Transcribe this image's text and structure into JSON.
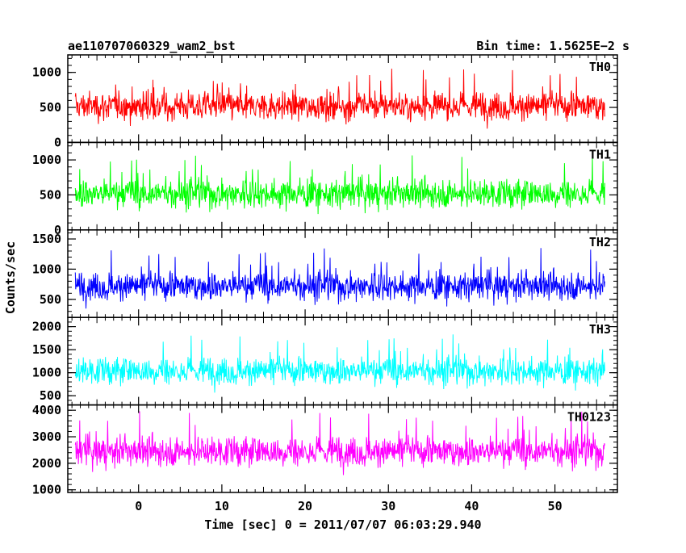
{
  "chart_data": {
    "type": "line",
    "title_left": "ae110707060329_wam2_bst",
    "title_right": "Bin time: 1.5625E−2 s",
    "xlabel": "Time [sec] 0 = 2011/07/07 06:03:29.940",
    "ylabel": "Counts/sec",
    "xlim": [
      -8.5,
      57.5
    ],
    "x_ticks": [
      0,
      10,
      20,
      30,
      40,
      50
    ],
    "data_x_range": [
      -7.6,
      56.0
    ],
    "panels": [
      {
        "name": "TH0",
        "color": "#ff0000",
        "ylim": [
          0,
          1250
        ],
        "y_ticks": [
          0,
          500,
          1000
        ],
        "mean": 520,
        "spread": 260,
        "min": 60,
        "max": 1250
      },
      {
        "name": "TH1",
        "color": "#00ff00",
        "ylim": [
          0,
          1250
        ],
        "y_ticks": [
          0,
          500,
          1000
        ],
        "mean": 520,
        "spread": 260,
        "min": 60,
        "max": 1250
      },
      {
        "name": "TH2",
        "color": "#0000ff",
        "ylim": [
          200,
          1650
        ],
        "y_ticks": [
          500,
          1000,
          1500
        ],
        "mean": 720,
        "spread": 300,
        "min": 250,
        "max": 1650
      },
      {
        "name": "TH3",
        "color": "#00ffff",
        "ylim": [
          300,
          2200
        ],
        "y_ticks": [
          500,
          1000,
          1500,
          2000
        ],
        "mean": 1040,
        "spread": 380,
        "min": 350,
        "max": 2200
      },
      {
        "name": "TH0123",
        "color": "#ff00ff",
        "ylim": [
          900,
          4200
        ],
        "y_ticks": [
          1000,
          2000,
          3000,
          4000
        ],
        "mean": 2450,
        "spread": 720,
        "min": 1000,
        "max": 4200
      }
    ]
  }
}
